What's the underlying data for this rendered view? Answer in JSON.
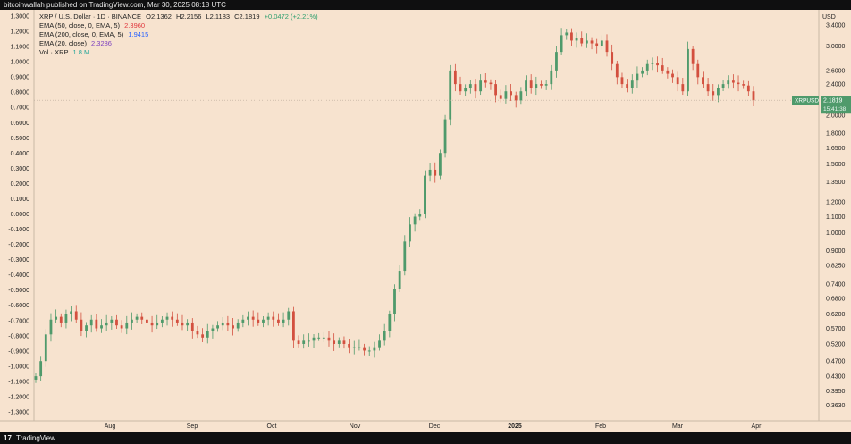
{
  "header": {
    "attribution": "bitcoinwallah published on TradingView.com, Mar 30, 2025 08:18 UTC"
  },
  "legend": {
    "symbol": "XRP / U.S. Dollar · 1D · BINANCE",
    "open": "O2.1362",
    "high": "H2.2156",
    "low": "L2.1183",
    "close": "C2.1819",
    "change": "+0.0472 (+2.21%)",
    "ema50": {
      "label": "EMA (50, close, 0, EMA, 5)",
      "value": "2.3960",
      "color": "#e0383e"
    },
    "ema200": {
      "label": "EMA (200, close, 0, EMA, 5)",
      "value": "1.9415",
      "color": "#2962ff"
    },
    "ema20": {
      "label": "EMA (20, close)",
      "value": "2.3286",
      "color": "#7b3fbf"
    },
    "vol": {
      "label": "Vol · XRP",
      "value": "1.8 M",
      "color": "#26a69a"
    }
  },
  "footer": {
    "brand": "TradingView"
  },
  "colors": {
    "background": "#f7e3cf",
    "up_candle": "#4f9a6b",
    "down_candle": "#d3503f",
    "axis_text": "#222222",
    "price_label_bg": "#4f9a6b"
  },
  "chart_data": {
    "type": "candlestick",
    "title": "XRP / U.S. Dollar · 1D · BINANCE",
    "right_axis": {
      "unit_label": "USD",
      "scale": "log",
      "ticks": [
        "3.4000",
        "3.0000",
        "2.6000",
        "2.4000",
        "2.2000",
        "2.0000",
        "1.8000",
        "1.6500",
        "1.5000",
        "1.3500",
        "1.2000",
        "1.1000",
        "1.0000",
        "0.9000",
        "0.8250",
        "0.7400",
        "0.6800",
        "0.6200",
        "0.5700",
        "0.5200",
        "0.4700",
        "0.4300",
        "0.3950",
        "0.3630"
      ]
    },
    "left_axis": {
      "ticks": [
        "1.3000",
        "1.2000",
        "1.1000",
        "1.0000",
        "0.9000",
        "0.8000",
        "0.7000",
        "0.6000",
        "0.5000",
        "0.4000",
        "0.3000",
        "0.2000",
        "0.1000",
        "0.0000",
        "-0.1000",
        "-0.2000",
        "-0.3000",
        "-0.4000",
        "-0.5000",
        "-0.6000",
        "-0.7000",
        "-0.8000",
        "-0.9000",
        "-1.0000",
        "-1.1000",
        "-1.2000",
        "-1.3000"
      ]
    },
    "x_axis": {
      "labels": [
        "Aug",
        "Sep",
        "Oct",
        "Nov",
        "Dec",
        "2025",
        "Feb",
        "Mar",
        "Apr"
      ]
    },
    "current_price": {
      "symbol": "XRPUSD",
      "value": "2.1819",
      "countdown": "15:41:38"
    },
    "series": [
      {
        "period": "Jul 2024 (mid)",
        "close_approx": [
          0.43,
          0.47,
          0.55,
          0.6,
          0.61,
          0.59,
          0.62,
          0.63,
          0.6
        ]
      },
      {
        "period": "Aug 2024",
        "close_approx": [
          0.56,
          0.58,
          0.6,
          0.57,
          0.58,
          0.59,
          0.6,
          0.58,
          0.57,
          0.59,
          0.6,
          0.61,
          0.6,
          0.59,
          0.58,
          0.59,
          0.6,
          0.61,
          0.6,
          0.59,
          0.58,
          0.59
        ]
      },
      {
        "period": "Sep 2024",
        "close_approx": [
          0.56,
          0.55,
          0.54,
          0.56,
          0.57,
          0.58,
          0.59,
          0.58,
          0.57,
          0.59,
          0.6,
          0.61,
          0.6,
          0.59,
          0.6,
          0.61,
          0.6,
          0.59,
          0.6,
          0.63
        ]
      },
      {
        "period": "Oct 2024",
        "close_approx": [
          0.53,
          0.52,
          0.53,
          0.53,
          0.54,
          0.54,
          0.54,
          0.53,
          0.52,
          0.53,
          0.52,
          0.51,
          0.51,
          0.51,
          0.5
        ]
      },
      {
        "period": "Nov 2024",
        "close_approx": [
          0.5,
          0.51,
          0.53,
          0.56,
          0.62,
          0.72,
          0.8,
          0.95,
          1.05,
          1.1,
          1.12,
          1.4,
          1.45,
          1.4,
          1.6,
          1.95
        ]
      },
      {
        "period": "Dec 2024",
        "close_approx": [
          2.6,
          2.4,
          2.3,
          2.35,
          2.4,
          2.3,
          2.45,
          2.42,
          2.4,
          2.25,
          2.2,
          2.3,
          2.25,
          2.18,
          2.3,
          2.45,
          2.35,
          2.4,
          2.38
        ]
      },
      {
        "period": "Jan 2025",
        "close_approx": [
          2.4,
          2.6,
          2.9,
          3.2,
          3.25,
          3.1,
          3.15,
          3.05,
          3.1,
          3.05,
          3.0,
          3.1
        ]
      },
      {
        "period": "Feb 2025",
        "close_approx": [
          2.9,
          2.7,
          2.5,
          2.4,
          2.35,
          2.45,
          2.55,
          2.6,
          2.7,
          2.72,
          2.68,
          2.6,
          2.55,
          2.5,
          2.4,
          2.3
        ]
      },
      {
        "period": "Mar 2025",
        "close_approx": [
          2.95,
          2.7,
          2.5,
          2.4,
          2.3,
          2.25,
          2.35,
          2.4,
          2.45,
          2.42,
          2.4,
          2.38,
          2.3,
          2.18
        ]
      }
    ]
  }
}
